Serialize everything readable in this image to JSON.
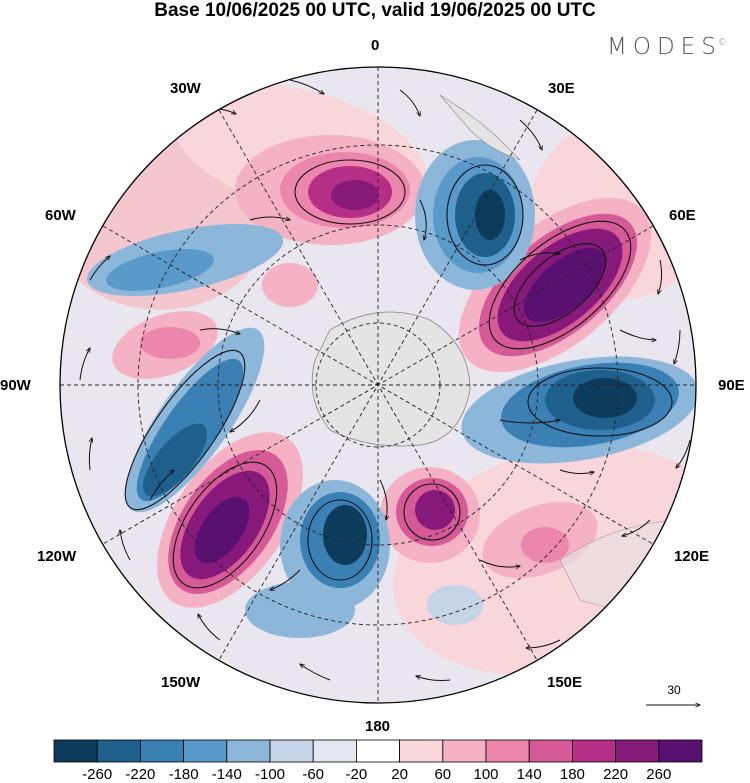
{
  "title": "Base 10/06/2025 00 UTC, valid 19/06/2025 00 UTC",
  "brand": "MODES",
  "brand_mark": "©",
  "longitude_labels": {
    "top": "0",
    "top_left": "30W",
    "top_right": "30E",
    "upper_left": "60W",
    "upper_right": "60E",
    "left": "90W",
    "right": "90E",
    "lower_left": "120W",
    "lower_right": "120E",
    "bottom_left": "150W",
    "bottom_right": "150E",
    "bottom": "180"
  },
  "reference_vector": "30",
  "colorbar": {
    "ticks": [
      "-260",
      "-220",
      "-180",
      "-140",
      "-100",
      "-60",
      "-20",
      "20",
      "60",
      "100",
      "140",
      "180",
      "220",
      "260"
    ],
    "colors": [
      "#0d3b5c",
      "#1f5f8b",
      "#3b80b4",
      "#5a9acb",
      "#8db7da",
      "#c6d4e8",
      "#e6e6f0",
      "#ffffff",
      "#f8d6da",
      "#f4b2c4",
      "#ec86ad",
      "#d65a97",
      "#b42f85",
      "#86197a",
      "#5a1070"
    ]
  },
  "map": {
    "projection": "north polar stereographic",
    "field": "geopotential height anomaly with wind vectors",
    "highlight_colors": {
      "land": "#e4e4e4",
      "coast": "#888888",
      "grid": "#222222"
    }
  }
}
